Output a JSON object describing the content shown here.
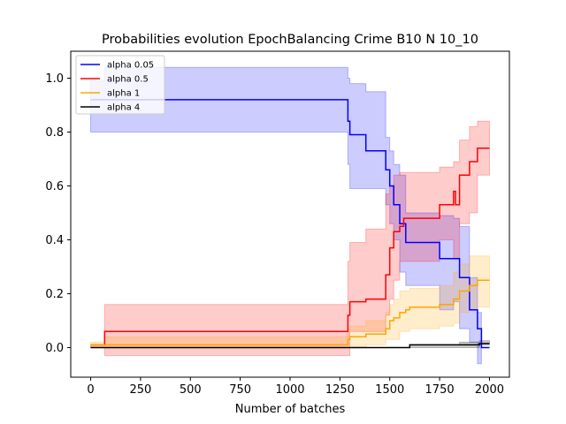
{
  "chart_data": {
    "type": "line",
    "title": "Probabilities evolution EpochBalancing Crime B10 N 10_10",
    "xlabel": "Number of batches",
    "ylabel": "",
    "xlim": [
      -100,
      2100
    ],
    "ylim": [
      -0.11,
      1.1
    ],
    "xticks": [
      0,
      250,
      500,
      750,
      1000,
      1250,
      1500,
      1750,
      2000
    ],
    "yticks": [
      0.0,
      0.2,
      0.4,
      0.6,
      0.8,
      1.0
    ],
    "xtick_labels": [
      "0",
      "250",
      "500",
      "750",
      "1000",
      "1250",
      "1500",
      "1750",
      "2000"
    ],
    "ytick_labels": [
      "0.0",
      "0.2",
      "0.4",
      "0.6",
      "0.8",
      "1.0"
    ],
    "legend_position": "top-left",
    "grid": false,
    "series": [
      {
        "name": "alpha 0.05",
        "color": "#0000ff",
        "band_color": "#0000ff",
        "steps": [
          [
            0,
            0.92
          ],
          [
            1280,
            0.92
          ],
          [
            1290,
            0.84
          ],
          [
            1300,
            0.79
          ],
          [
            1380,
            0.73
          ],
          [
            1480,
            0.66
          ],
          [
            1500,
            0.6
          ],
          [
            1520,
            0.53
          ],
          [
            1550,
            0.46
          ],
          [
            1580,
            0.39
          ],
          [
            1750,
            0.33
          ],
          [
            1820,
            0.33
          ],
          [
            1850,
            0.26
          ],
          [
            1900,
            0.14
          ],
          [
            1940,
            0.07
          ],
          [
            1960,
            0.0
          ],
          [
            2000,
            0.0
          ]
        ],
        "lower": [
          [
            0,
            0.8
          ],
          [
            60,
            0.8
          ],
          [
            1270,
            0.8
          ],
          [
            1290,
            0.68
          ],
          [
            1300,
            0.59
          ],
          [
            1380,
            0.59
          ],
          [
            1480,
            0.53
          ],
          [
            1500,
            0.46
          ],
          [
            1520,
            0.4
          ],
          [
            1550,
            0.28
          ],
          [
            1580,
            0.23
          ],
          [
            1600,
            0.23
          ],
          [
            1750,
            0.14
          ],
          [
            1820,
            0.17
          ],
          [
            1850,
            0.07
          ],
          [
            1900,
            0.02
          ],
          [
            1940,
            -0.06
          ],
          [
            1960,
            0.0
          ],
          [
            2000,
            0.0
          ]
        ],
        "upper": [
          [
            0,
            0.99
          ],
          [
            60,
            0.99
          ],
          [
            70,
            1.04
          ],
          [
            1270,
            1.04
          ],
          [
            1290,
            1.0
          ],
          [
            1300,
            0.98
          ],
          [
            1380,
            0.95
          ],
          [
            1480,
            0.78
          ],
          [
            1500,
            0.73
          ],
          [
            1520,
            0.68
          ],
          [
            1550,
            0.64
          ],
          [
            1580,
            0.5
          ],
          [
            1750,
            0.49
          ],
          [
            1820,
            0.48
          ],
          [
            1850,
            0.45
          ],
          [
            1900,
            0.26
          ],
          [
            1940,
            0.13
          ],
          [
            1960,
            0.0
          ],
          [
            2000,
            0.0
          ]
        ]
      },
      {
        "name": "alpha 0.5",
        "color": "#ff0000",
        "band_color": "#ff0000",
        "steps": [
          [
            0,
            0.01
          ],
          [
            70,
            0.01
          ],
          [
            70,
            0.06
          ],
          [
            1280,
            0.06
          ],
          [
            1290,
            0.12
          ],
          [
            1300,
            0.17
          ],
          [
            1380,
            0.18
          ],
          [
            1480,
            0.27
          ],
          [
            1500,
            0.37
          ],
          [
            1520,
            0.43
          ],
          [
            1550,
            0.45
          ],
          [
            1570,
            0.48
          ],
          [
            1750,
            0.53
          ],
          [
            1820,
            0.58
          ],
          [
            1830,
            0.53
          ],
          [
            1850,
            0.64
          ],
          [
            1900,
            0.69
          ],
          [
            1940,
            0.74
          ],
          [
            2000,
            0.74
          ]
        ],
        "lower": [
          [
            0,
            0.0
          ],
          [
            70,
            0.0
          ],
          [
            70,
            -0.03
          ],
          [
            1280,
            -0.03
          ],
          [
            1300,
            0.06
          ],
          [
            1380,
            0.06
          ],
          [
            1480,
            0.12
          ],
          [
            1500,
            0.18
          ],
          [
            1520,
            0.25
          ],
          [
            1550,
            0.32
          ],
          [
            1750,
            0.4
          ],
          [
            1820,
            0.33
          ],
          [
            1850,
            0.46
          ],
          [
            1900,
            0.5
          ],
          [
            1940,
            0.64
          ],
          [
            2000,
            0.64
          ]
        ],
        "upper": [
          [
            0,
            0.01
          ],
          [
            70,
            0.01
          ],
          [
            70,
            0.16
          ],
          [
            1280,
            0.16
          ],
          [
            1290,
            0.32
          ],
          [
            1300,
            0.39
          ],
          [
            1380,
            0.44
          ],
          [
            1480,
            0.57
          ],
          [
            1500,
            0.6
          ],
          [
            1520,
            0.64
          ],
          [
            1550,
            0.65
          ],
          [
            1750,
            0.67
          ],
          [
            1820,
            0.69
          ],
          [
            1850,
            0.77
          ],
          [
            1900,
            0.82
          ],
          [
            1940,
            0.84
          ],
          [
            2000,
            0.84
          ]
        ]
      },
      {
        "name": "alpha 1",
        "color": "#ffa500",
        "band_color": "#ffa500",
        "steps": [
          [
            0,
            0.01
          ],
          [
            70,
            0.01
          ],
          [
            1280,
            0.01
          ],
          [
            1290,
            0.03
          ],
          [
            1300,
            0.04
          ],
          [
            1380,
            0.05
          ],
          [
            1480,
            0.07
          ],
          [
            1500,
            0.1
          ],
          [
            1520,
            0.11
          ],
          [
            1550,
            0.13
          ],
          [
            1580,
            0.14
          ],
          [
            1600,
            0.15
          ],
          [
            1750,
            0.16
          ],
          [
            1820,
            0.18
          ],
          [
            1850,
            0.21
          ],
          [
            1900,
            0.23
          ],
          [
            1940,
            0.25
          ],
          [
            2000,
            0.25
          ]
        ],
        "lower": [
          [
            0,
            0.0
          ],
          [
            70,
            0.0
          ],
          [
            1280,
            0.0
          ],
          [
            1300,
            0.0
          ],
          [
            1380,
            0.01
          ],
          [
            1480,
            0.03
          ],
          [
            1550,
            0.06
          ],
          [
            1600,
            0.07
          ],
          [
            1750,
            0.08
          ],
          [
            1820,
            0.09
          ],
          [
            1850,
            0.13
          ],
          [
            1900,
            0.14
          ],
          [
            1940,
            0.15
          ],
          [
            2000,
            0.15
          ]
        ],
        "upper": [
          [
            0,
            0.02
          ],
          [
            70,
            0.02
          ],
          [
            70,
            0.04
          ],
          [
            1280,
            0.04
          ],
          [
            1290,
            0.07
          ],
          [
            1300,
            0.08
          ],
          [
            1380,
            0.1
          ],
          [
            1480,
            0.13
          ],
          [
            1500,
            0.16
          ],
          [
            1520,
            0.18
          ],
          [
            1550,
            0.21
          ],
          [
            1600,
            0.22
          ],
          [
            1750,
            0.23
          ],
          [
            1820,
            0.28
          ],
          [
            1850,
            0.31
          ],
          [
            1900,
            0.34
          ],
          [
            1940,
            0.34
          ],
          [
            2000,
            0.34
          ]
        ]
      },
      {
        "name": "alpha 4",
        "color": "#000000",
        "band_color": "#000000",
        "steps": [
          [
            0,
            0.0
          ],
          [
            1280,
            0.0
          ],
          [
            1500,
            0.0
          ],
          [
            1600,
            0.01
          ],
          [
            1800,
            0.01
          ],
          [
            1850,
            0.01
          ],
          [
            1950,
            0.015
          ],
          [
            2000,
            0.015
          ]
        ],
        "lower": [
          [
            0,
            0.0
          ],
          [
            1280,
            0.0
          ],
          [
            1600,
            0.0
          ],
          [
            1850,
            0.0
          ],
          [
            1950,
            0.01
          ],
          [
            2000,
            0.01
          ]
        ],
        "upper": [
          [
            0,
            0.0
          ],
          [
            1280,
            0.0
          ],
          [
            1600,
            0.01
          ],
          [
            1850,
            0.02
          ],
          [
            1950,
            0.025
          ],
          [
            2000,
            0.025
          ]
        ]
      }
    ]
  }
}
